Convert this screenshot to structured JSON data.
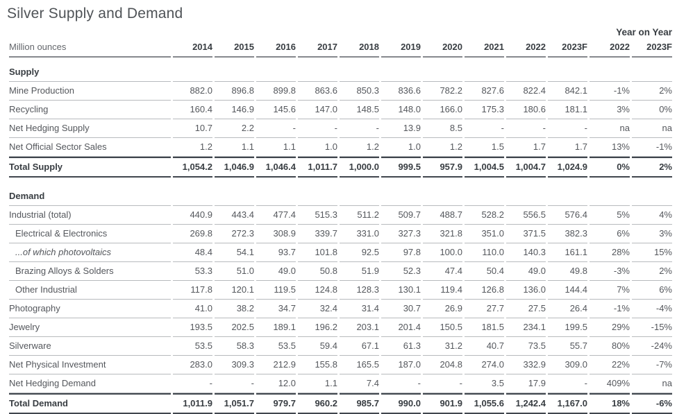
{
  "title": "Silver Supply and Demand",
  "unit_label": "Million ounces",
  "yoy_label": "Year on Year",
  "columns": [
    "2014",
    "2015",
    "2016",
    "2017",
    "2018",
    "2019",
    "2020",
    "2021",
    "2022",
    "2023F"
  ],
  "yoy_columns": [
    "2022",
    "2023F"
  ],
  "colors": {
    "text": "#54575c",
    "heading": "#383d42",
    "rule_light": "#b7babd",
    "rule_medium": "#85888d",
    "rule_dark": "#40464d"
  },
  "sections": [
    {
      "name": "Supply",
      "rows": [
        {
          "label": "Mine Production",
          "style": "normal",
          "values": [
            "882.0",
            "896.8",
            "899.8",
            "863.6",
            "850.3",
            "836.6",
            "782.2",
            "827.6",
            "822.4",
            "842.1"
          ],
          "yoy": [
            "-1%",
            "2%"
          ]
        },
        {
          "label": "Recycling",
          "style": "normal",
          "values": [
            "160.4",
            "146.9",
            "145.6",
            "147.0",
            "148.5",
            "148.0",
            "166.0",
            "175.3",
            "180.6",
            "181.1"
          ],
          "yoy": [
            "3%",
            "0%"
          ]
        },
        {
          "label": "Net Hedging Supply",
          "style": "normal",
          "values": [
            "10.7",
            "2.2",
            "-",
            "-",
            "-",
            "13.9",
            "8.5",
            "-",
            "-",
            "-"
          ],
          "yoy": [
            "na",
            "na"
          ]
        },
        {
          "label": "Net Official Sector Sales",
          "style": "normal",
          "values": [
            "1.2",
            "1.1",
            "1.1",
            "1.0",
            "1.2",
            "1.0",
            "1.2",
            "1.5",
            "1.7",
            "1.7"
          ],
          "yoy": [
            "13%",
            "-1%"
          ]
        },
        {
          "label": "Total Supply",
          "style": "total",
          "values": [
            "1,054.2",
            "1,046.9",
            "1,046.4",
            "1,011.7",
            "1,000.0",
            "999.5",
            "957.9",
            "1,004.5",
            "1,004.7",
            "1,024.9"
          ],
          "yoy": [
            "0%",
            "2%"
          ]
        }
      ]
    },
    {
      "name": "Demand",
      "rows": [
        {
          "label": "Industrial (total)",
          "style": "normal",
          "values": [
            "440.9",
            "443.4",
            "477.4",
            "515.3",
            "511.2",
            "509.7",
            "488.7",
            "528.2",
            "556.5",
            "576.4"
          ],
          "yoy": [
            "5%",
            "4%"
          ]
        },
        {
          "label": "Electrical & Electronics",
          "style": "indent",
          "values": [
            "269.8",
            "272.3",
            "308.9",
            "339.7",
            "331.0",
            "327.3",
            "321.8",
            "351.0",
            "371.5",
            "382.3"
          ],
          "yoy": [
            "6%",
            "3%"
          ]
        },
        {
          "label": "...of which photovoltaics",
          "style": "indent-italic",
          "values": [
            "48.4",
            "54.1",
            "93.7",
            "101.8",
            "92.5",
            "97.8",
            "100.0",
            "110.0",
            "140.3",
            "161.1"
          ],
          "yoy": [
            "28%",
            "15%"
          ]
        },
        {
          "label": "Brazing Alloys & Solders",
          "style": "indent",
          "values": [
            "53.3",
            "51.0",
            "49.0",
            "50.8",
            "51.9",
            "52.3",
            "47.4",
            "50.4",
            "49.0",
            "49.8"
          ],
          "yoy": [
            "-3%",
            "2%"
          ]
        },
        {
          "label": "Other Industrial",
          "style": "indent",
          "values": [
            "117.8",
            "120.1",
            "119.5",
            "124.8",
            "128.3",
            "130.1",
            "119.4",
            "126.8",
            "136.0",
            "144.4"
          ],
          "yoy": [
            "7%",
            "6%"
          ]
        },
        {
          "label": "Photography",
          "style": "normal",
          "values": [
            "41.0",
            "38.2",
            "34.7",
            "32.4",
            "31.4",
            "30.7",
            "26.9",
            "27.7",
            "27.5",
            "26.4"
          ],
          "yoy": [
            "-1%",
            "-4%"
          ]
        },
        {
          "label": "Jewelry",
          "style": "normal",
          "values": [
            "193.5",
            "202.5",
            "189.1",
            "196.2",
            "203.1",
            "201.4",
            "150.5",
            "181.5",
            "234.1",
            "199.5"
          ],
          "yoy": [
            "29%",
            "-15%"
          ]
        },
        {
          "label": "Silverware",
          "style": "normal",
          "values": [
            "53.5",
            "58.3",
            "53.5",
            "59.4",
            "67.1",
            "61.3",
            "31.2",
            "40.7",
            "73.5",
            "55.7"
          ],
          "yoy": [
            "80%",
            "-24%"
          ]
        },
        {
          "label": "Net Physical Investment",
          "style": "normal",
          "values": [
            "283.0",
            "309.3",
            "212.9",
            "155.8",
            "165.5",
            "187.0",
            "204.8",
            "274.0",
            "332.9",
            "309.0"
          ],
          "yoy": [
            "22%",
            "-7%"
          ]
        },
        {
          "label": "Net Hedging Demand",
          "style": "normal",
          "values": [
            "-",
            "-",
            "12.0",
            "1.1",
            "7.4",
            "-",
            "-",
            "3.5",
            "17.9",
            "-"
          ],
          "yoy": [
            "409%",
            "na"
          ]
        },
        {
          "label": "Total Demand",
          "style": "total",
          "values": [
            "1,011.9",
            "1,051.7",
            "979.7",
            "960.2",
            "985.7",
            "990.0",
            "901.9",
            "1,055.6",
            "1,242.4",
            "1,167.0"
          ],
          "yoy": [
            "18%",
            "-6%"
          ]
        }
      ]
    }
  ]
}
